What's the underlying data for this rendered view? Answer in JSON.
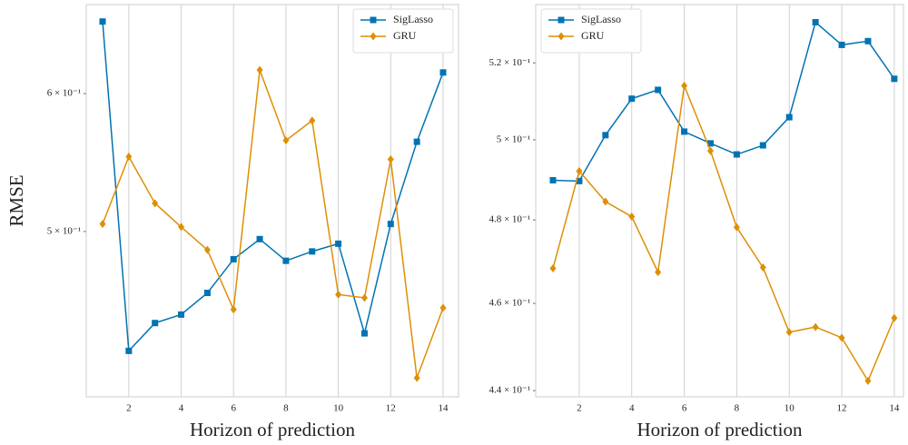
{
  "chart_data": [
    {
      "type": "line",
      "xlabel": "Horizon of prediction",
      "ylabel": "RMSE",
      "log_y": true,
      "grid": "x",
      "legend": "upper right",
      "x": [
        1,
        2,
        3,
        4,
        5,
        6,
        7,
        8,
        9,
        10,
        11,
        12,
        13,
        14
      ],
      "series": [
        {
          "name": "SigLasso",
          "color": "#0173b2",
          "marker": "square",
          "values": [
            0.66,
            0.427,
            0.443,
            0.448,
            0.461,
            0.482,
            0.495,
            0.481,
            0.487,
            0.492,
            0.437,
            0.505,
            0.563,
            0.617
          ]
        },
        {
          "name": "GRU",
          "color": "#de8f05",
          "marker": "diamond",
          "values": [
            0.505,
            0.552,
            0.519,
            0.503,
            0.488,
            0.451,
            0.619,
            0.564,
            0.579,
            0.46,
            0.458,
            0.55,
            0.412,
            0.452
          ]
        }
      ],
      "xlim": [
        0.376,
        14.59
      ],
      "xticks": [
        2,
        4,
        6,
        8,
        10,
        12,
        14
      ],
      "ylim": [
        0.4018,
        0.675
      ],
      "yticks": [
        {
          "value": 0.5,
          "label": "5 × 10⁻¹"
        },
        {
          "value": 0.6,
          "label": "6 × 10⁻¹"
        }
      ]
    },
    {
      "type": "line",
      "xlabel": "Horizon of prediction",
      "log_y": true,
      "grid": "x",
      "legend": "upper left",
      "x": [
        1,
        2,
        3,
        4,
        5,
        6,
        7,
        8,
        9,
        10,
        11,
        12,
        13,
        14
      ],
      "series": [
        {
          "name": "SigLasso",
          "color": "#0173b2",
          "marker": "square",
          "values": [
            0.4898,
            0.4896,
            0.5012,
            0.5106,
            0.5129,
            0.5021,
            0.4991,
            0.4963,
            0.4986,
            0.5058,
            0.5309,
            0.5248,
            0.5258,
            0.5158
          ]
        },
        {
          "name": "GRU",
          "color": "#de8f05",
          "marker": "diamond",
          "values": [
            0.4683,
            0.4921,
            0.4845,
            0.4808,
            0.4674,
            0.514,
            0.4972,
            0.4782,
            0.4685,
            0.4533,
            0.4545,
            0.452,
            0.4422,
            0.4566
          ]
        }
      ],
      "xlim": [
        0.343,
        14.35
      ],
      "xticks": [
        2,
        4,
        6,
        8,
        10,
        12,
        14
      ],
      "ylim": [
        0.4386,
        0.5357
      ],
      "yticks": [
        {
          "value": 0.44,
          "label": "4.4 × 10⁻¹"
        },
        {
          "value": 0.46,
          "label": "4.6 × 10⁻¹"
        },
        {
          "value": 0.48,
          "label": "4.8 × 10⁻¹"
        },
        {
          "value": 0.5,
          "label": "5 × 10⁻¹"
        },
        {
          "value": 0.52,
          "label": "5.2 × 10⁻¹"
        }
      ]
    }
  ]
}
